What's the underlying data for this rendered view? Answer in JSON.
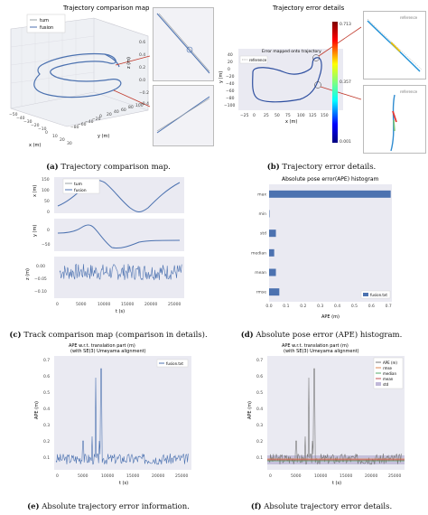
{
  "captions": {
    "a_label": "(a)",
    "a_text": " Trajectory comparison map.",
    "b_label": "(b)",
    "b_text": " Trajectory error details.",
    "c_label": "(c)",
    "c_text": " Track comparison map (comparison in details).",
    "d_label": "(d)",
    "d_text": " Absolute pose error (APE) histogram.",
    "e_label": "(e)",
    "e_text": " Absolute trajectory error information.",
    "f_label": "(f)",
    "f_text": " Absolute trajectory error details."
  },
  "panel_a": {
    "title": "Trajectory comparison map",
    "legend": [
      "tum",
      "fusion"
    ],
    "xlabel": "x (m)",
    "ylabel": "y (m)",
    "zlabel": "z (m)",
    "x_ticks": [
      "−50",
      "−40",
      "−30",
      "−20",
      "−10",
      "0",
      "10",
      "20",
      "30"
    ],
    "y_ticks": [
      "−80",
      "−60",
      "−40",
      "−20",
      "0",
      "20",
      "40",
      "60",
      "80",
      "100"
    ],
    "z_ticks": [
      "0.6",
      "0.4",
      "0.2",
      "0.0",
      "−0.2",
      "−0.4"
    ]
  },
  "panel_b": {
    "title": "Trajectory error details",
    "annotation": "Error mapped onto trajectory",
    "legend": [
      "reference"
    ],
    "xlabel": "x (m)",
    "ylabel": "y (m)",
    "x_ticks": [
      "−25",
      "0",
      "25",
      "50",
      "75",
      "100",
      "125",
      "150"
    ],
    "y_ticks": [
      "40",
      "20",
      "0",
      "−20",
      "−40",
      "−60",
      "−80",
      "−100"
    ],
    "colorbar_ticks": [
      "0.713",
      "0.357",
      "0.001"
    ],
    "zoom_legend": [
      "reference"
    ]
  },
  "panel_c": {
    "legend": [
      "tum",
      "fusion"
    ],
    "ylabels": [
      "x (m)",
      "y (m)",
      "z (m)"
    ],
    "xlabel": "t (s)",
    "x_ticks": [
      "0",
      "5000",
      "10000",
      "15000",
      "20000",
      "25000"
    ],
    "ticks_top": [
      "150",
      "100",
      "50",
      "0"
    ],
    "ticks_mid": [
      "0",
      "−50"
    ],
    "ticks_bot": [
      "0.00",
      "−0.05",
      "−0.10"
    ]
  },
  "panel_d": {
    "title": "Absolute pose error(APE) histogram",
    "legend": [
      "fusion.txt"
    ],
    "xlabel": "APE (m)",
    "x_ticks": [
      "0.0",
      "0.1",
      "0.2",
      "0.3",
      "0.4",
      "0.5",
      "0.6",
      "0.7"
    ],
    "chart_data": {
      "type": "bar",
      "categories": [
        "max",
        "min",
        "std",
        "median",
        "mean",
        "rmse"
      ],
      "values": [
        0.713,
        0.0,
        0.04,
        0.03,
        0.04,
        0.06
      ]
    }
  },
  "panel_e": {
    "title_line1": "APE w.r.t. translation part (m)",
    "title_line2": "(with SE(3) Umeyama alignment)",
    "legend": [
      "fusion.txt"
    ],
    "ylabel": "APE (m)",
    "xlabel": "t (s)",
    "y_ticks": [
      "0.7",
      "0.6",
      "0.5",
      "0.4",
      "0.3",
      "0.2",
      "0.1"
    ],
    "x_ticks": [
      "0",
      "5000",
      "10000",
      "15000",
      "20000",
      "25000"
    ]
  },
  "panel_f": {
    "title_line1": "APE w.r.t. translation part (m)",
    "title_line2": "(with SE(3) Umeyama alignment)",
    "legend": [
      "APE (m)",
      "rmse",
      "median",
      "mean",
      "std"
    ],
    "ylabel": "APE (m)",
    "xlabel": "t (s)",
    "y_ticks": [
      "0.7",
      "0.6",
      "0.5",
      "0.4",
      "0.3",
      "0.2",
      "0.1"
    ],
    "x_ticks": [
      "0",
      "5000",
      "10000",
      "15000",
      "20000",
      "25000"
    ]
  },
  "colors": {
    "tum": "#9aa0a6",
    "fusion": "#4c72b0",
    "bar": "#4c72b0",
    "arrow": "#c0392b",
    "rmse": "#dd8452",
    "median": "#55a868",
    "mean": "#c44e52",
    "std": "#8172b3"
  }
}
